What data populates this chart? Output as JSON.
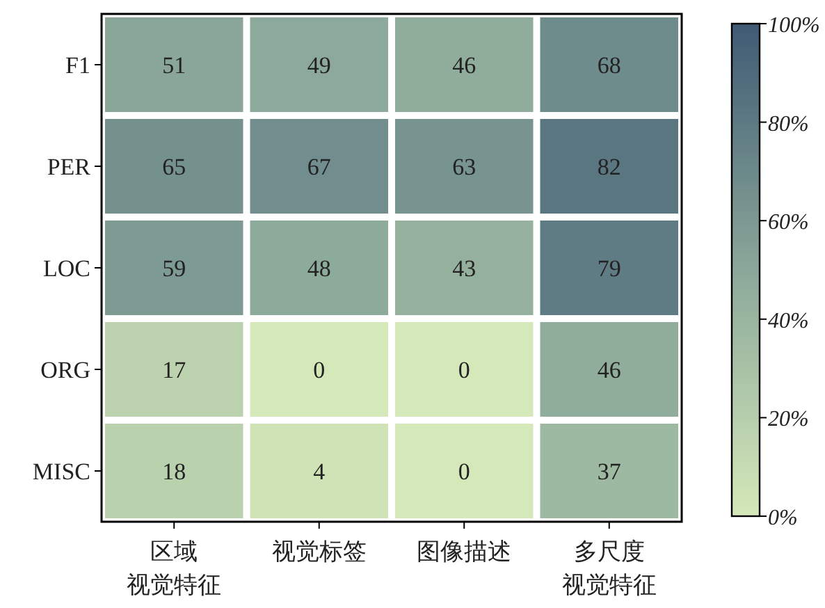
{
  "chart_data": {
    "type": "heatmap",
    "categories": [
      "区域视觉特征",
      "视觉标签",
      "图像描述",
      "多尺度视觉特征"
    ],
    "y_categories": [
      "F1",
      "PER",
      "LOC",
      "ORG",
      "MISC"
    ],
    "cells": [
      [
        51,
        49,
        46,
        68
      ],
      [
        65,
        67,
        63,
        82
      ],
      [
        59,
        48,
        43,
        79
      ],
      [
        17,
        0,
        0,
        46
      ],
      [
        18,
        4,
        0,
        37
      ]
    ],
    "clim": [
      0,
      100
    ],
    "cticks": [
      {
        "value": 0,
        "label": "0%"
      },
      {
        "value": 20,
        "label": "20%"
      },
      {
        "value": 40,
        "label": "40%"
      },
      {
        "value": 60,
        "label": "60%"
      },
      {
        "value": 80,
        "label": "80%"
      },
      {
        "value": 100,
        "label": "100%"
      }
    ],
    "data_labels": true
  }
}
